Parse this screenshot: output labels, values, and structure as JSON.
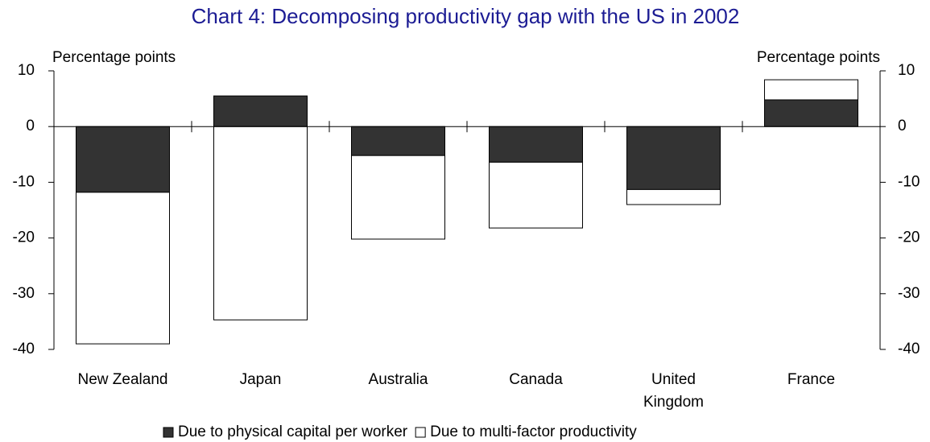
{
  "chart_data": {
    "type": "stacked_bar",
    "title": "Chart 4:  Decomposing productivity gap with the US in 2002",
    "y_label": "Percentage points",
    "y2_label": "Percentage points",
    "categories": [
      "New Zealand",
      "Japan",
      "Australia",
      "Canada",
      "United Kingdom",
      "France"
    ],
    "series": [
      {
        "name": "Due to physical capital per worker",
        "color": "#333333",
        "values": [
          -11.8,
          5.5,
          -5.2,
          -6.4,
          -11.3,
          4.8
        ]
      },
      {
        "name": "Due to multi-factor productivity",
        "color": "#ffffff",
        "values": [
          -27.2,
          -34.7,
          -15.0,
          -11.8,
          -2.7,
          3.6
        ]
      }
    ],
    "ylim": [
      -40,
      10
    ],
    "yticks": [
      10,
      0,
      -10,
      -20,
      -30,
      -40
    ],
    "y2lim": [
      -40,
      10
    ],
    "y2ticks": [
      10,
      0,
      -10,
      -20,
      -30,
      -40
    ],
    "grid": false
  }
}
